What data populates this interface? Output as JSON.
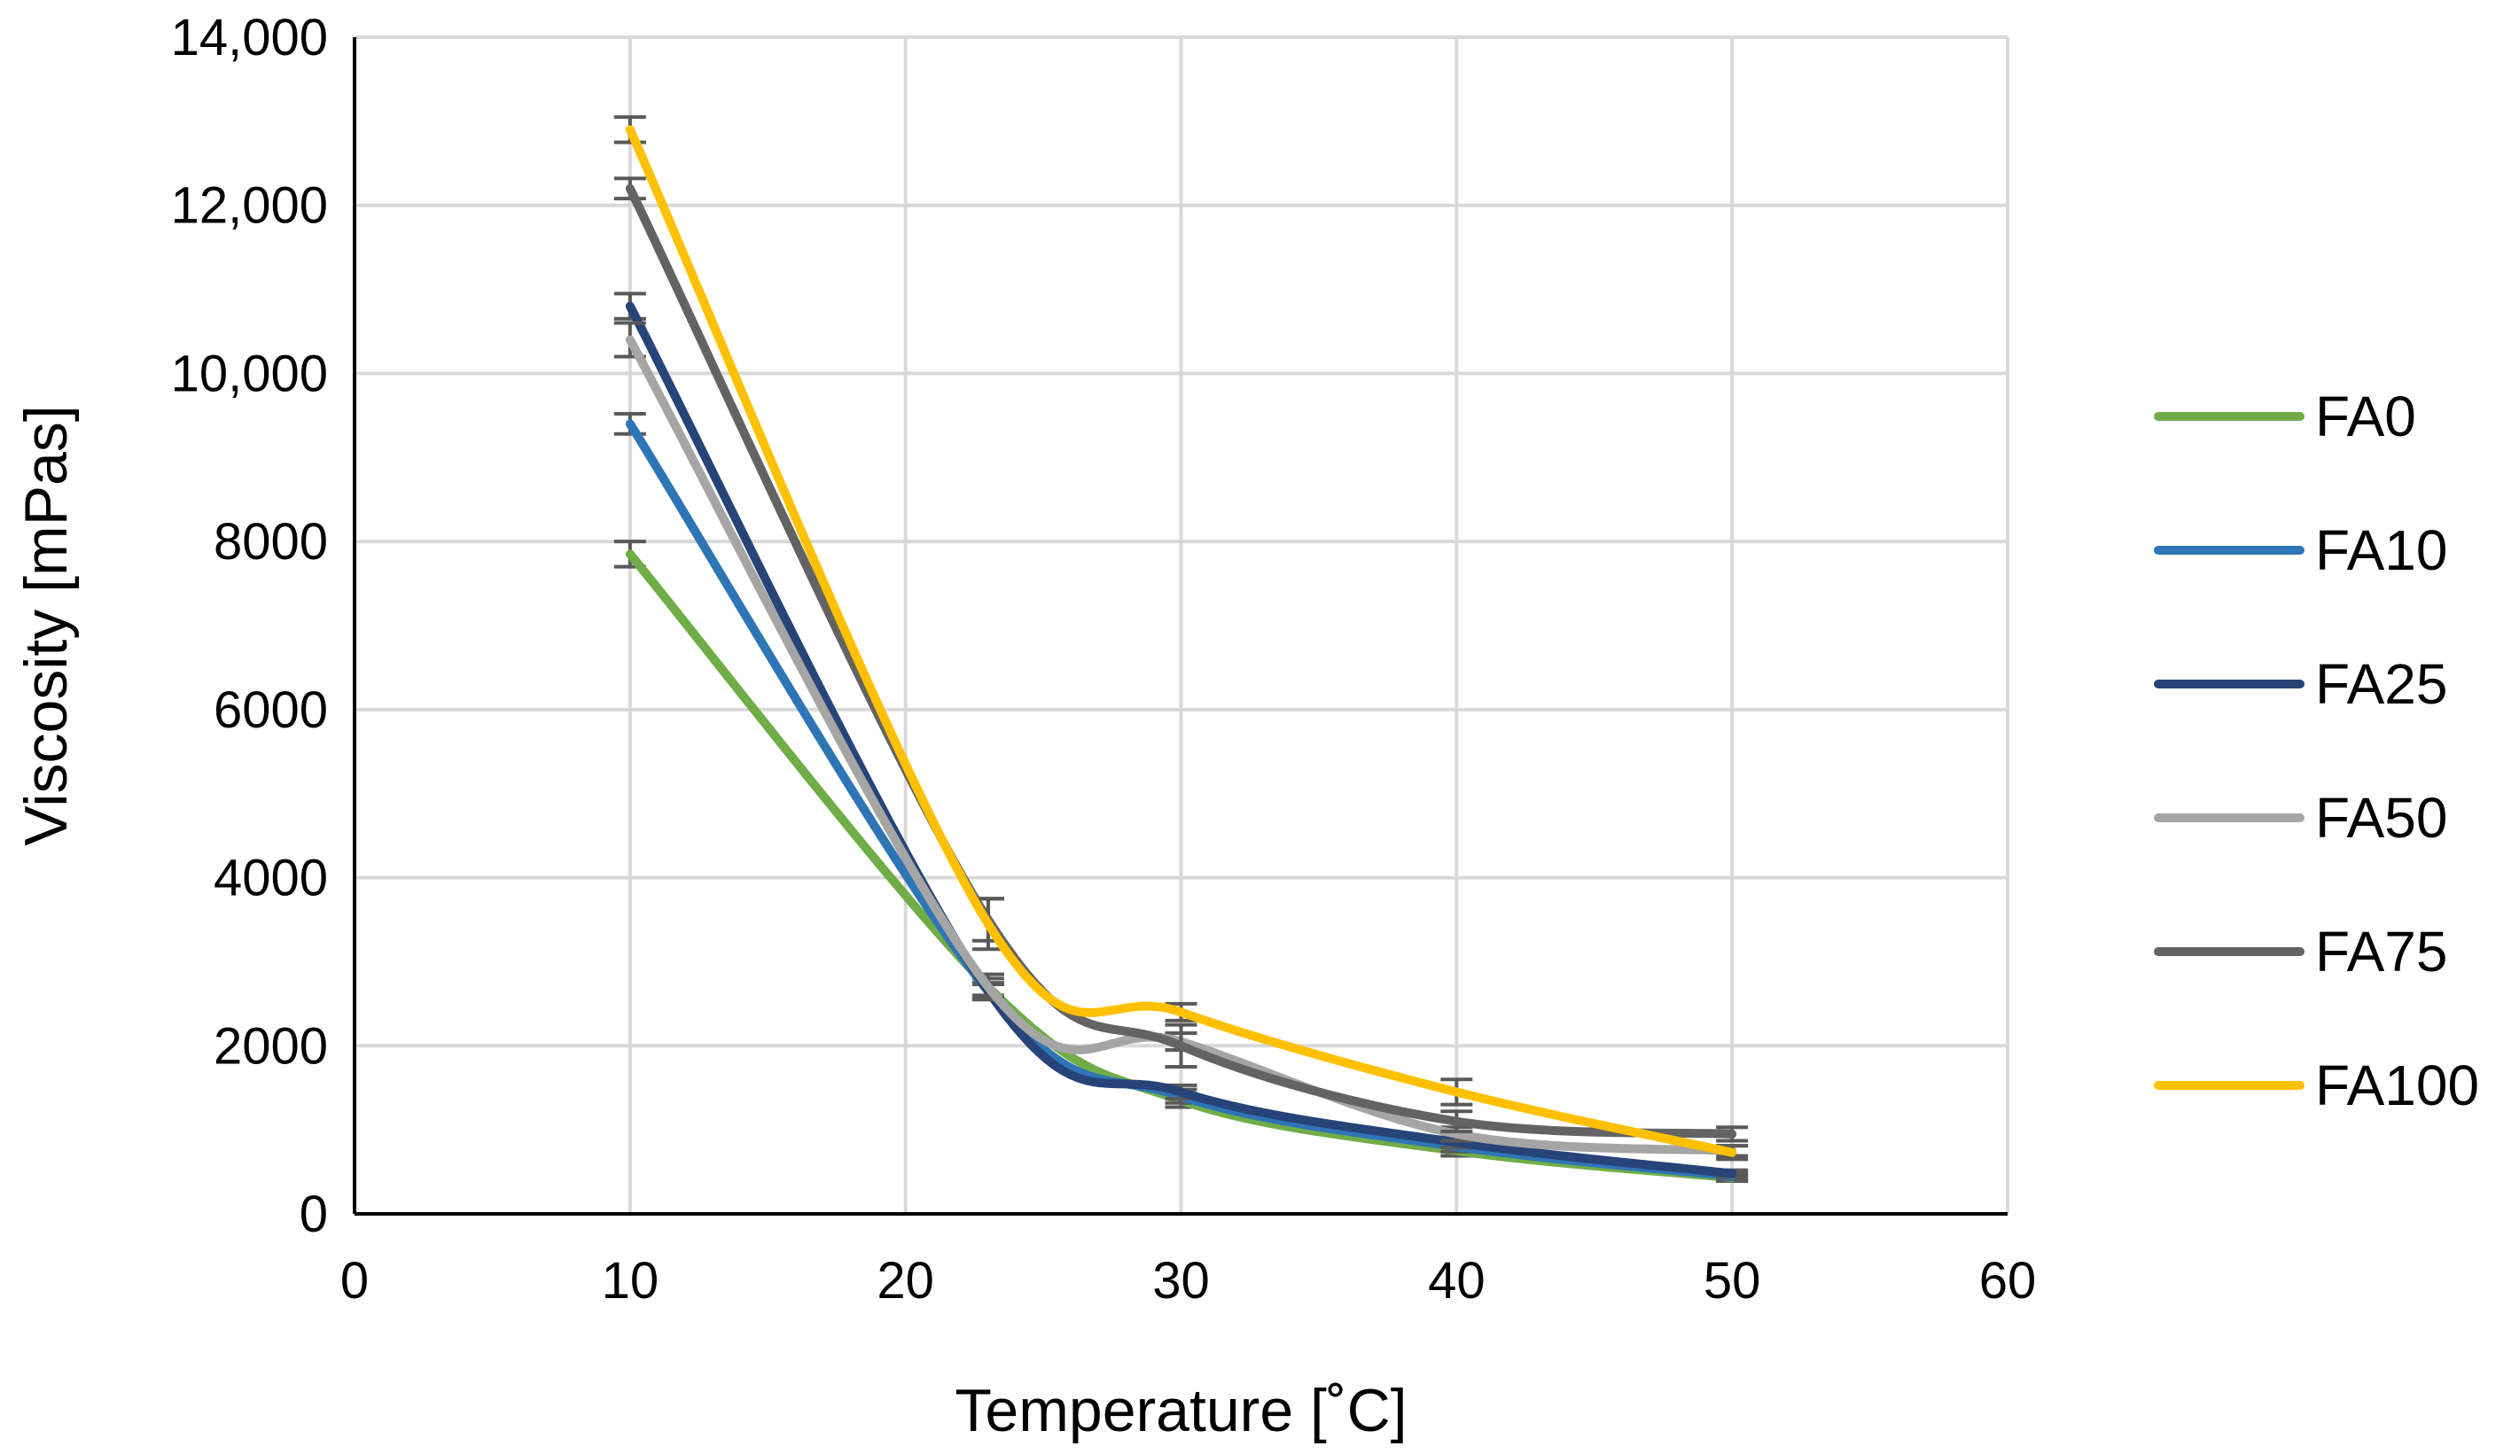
{
  "chart_data": {
    "type": "line",
    "title": "",
    "xlabel": "Temperature [˚C]",
    "ylabel": "Viscosity [mPas]",
    "xlim": [
      0,
      60
    ],
    "ylim": [
      0,
      14000
    ],
    "grid": true,
    "legend_position": "right",
    "x_ticks": [
      0,
      10,
      20,
      30,
      40,
      50,
      60
    ],
    "x_tick_labels": [
      "0",
      "10",
      "20",
      "30",
      "40",
      "50",
      "60"
    ],
    "y_ticks": [
      0,
      2000,
      4000,
      6000,
      8000,
      10000,
      12000,
      14000
    ],
    "y_tick_labels": [
      "0",
      "2000",
      "4000",
      "6000",
      "8000",
      "10,000",
      "12,000",
      "14,000"
    ],
    "x": [
      10,
      23,
      30,
      40,
      50
    ],
    "series": [
      {
        "name": "FA0",
        "color": "#70ad47",
        "values": [
          7850,
          2700,
          1350,
          750,
          430
        ],
        "errors": [
          150,
          100,
          80,
          60,
          40
        ]
      },
      {
        "name": "FA10",
        "color": "#2e75b6",
        "values": [
          9400,
          2650,
          1400,
          800,
          450
        ],
        "errors": [
          120,
          100,
          80,
          60,
          40
        ]
      },
      {
        "name": "FA25",
        "color": "#264478",
        "values": [
          10800,
          2650,
          1450,
          850,
          480
        ],
        "errors": [
          150,
          80,
          80,
          60,
          40
        ]
      },
      {
        "name": "FA50",
        "color": "#a5a5a5",
        "values": [
          10400,
          2700,
          2050,
          950,
          750
        ],
        "errors": [
          200,
          150,
          100,
          80,
          60
        ]
      },
      {
        "name": "FA75",
        "color": "#636363",
        "values": [
          12200,
          3500,
          2000,
          1100,
          950
        ],
        "errors": [
          120,
          250,
          250,
          120,
          80
        ]
      },
      {
        "name": "FA100",
        "color": "#ffc000",
        "values": [
          12900,
          3450,
          2400,
          1450,
          730
        ],
        "errors": [
          150,
          300,
          100,
          150,
          80
        ]
      }
    ]
  }
}
